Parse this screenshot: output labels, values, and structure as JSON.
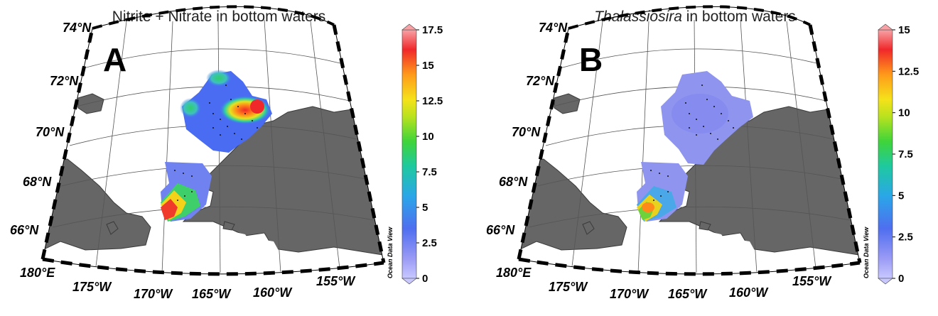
{
  "panels": [
    {
      "letter": "A",
      "title_plain": "Nitrite + Nitrate in bottom waters",
      "title_italic": "",
      "title_suffix": "",
      "colorbar": {
        "min": 0,
        "max": 17.5,
        "ticks": [
          "17.5",
          "15",
          "12.5",
          "10",
          "7.5",
          "5",
          "2.5",
          "0"
        ]
      }
    },
    {
      "letter": "B",
      "title_plain": "",
      "title_italic": "Thalassiosira",
      "title_suffix": " in bottom waters",
      "colorbar": {
        "min": 0,
        "max": 15,
        "ticks": [
          "15",
          "12.5",
          "10",
          "7.5",
          "5",
          "2.5",
          "0"
        ]
      }
    }
  ],
  "lat_labels": [
    "74°N",
    "72°N",
    "70°N",
    "68°N",
    "66°N"
  ],
  "lon_labels": [
    "180°E",
    "175°W",
    "170°W",
    "165°W",
    "160°W",
    "155°W"
  ],
  "watermark": "Ocean Data View",
  "colors": {
    "land": "#666666",
    "land_edge": "#3a3a3a",
    "background": "#ffffff"
  }
}
